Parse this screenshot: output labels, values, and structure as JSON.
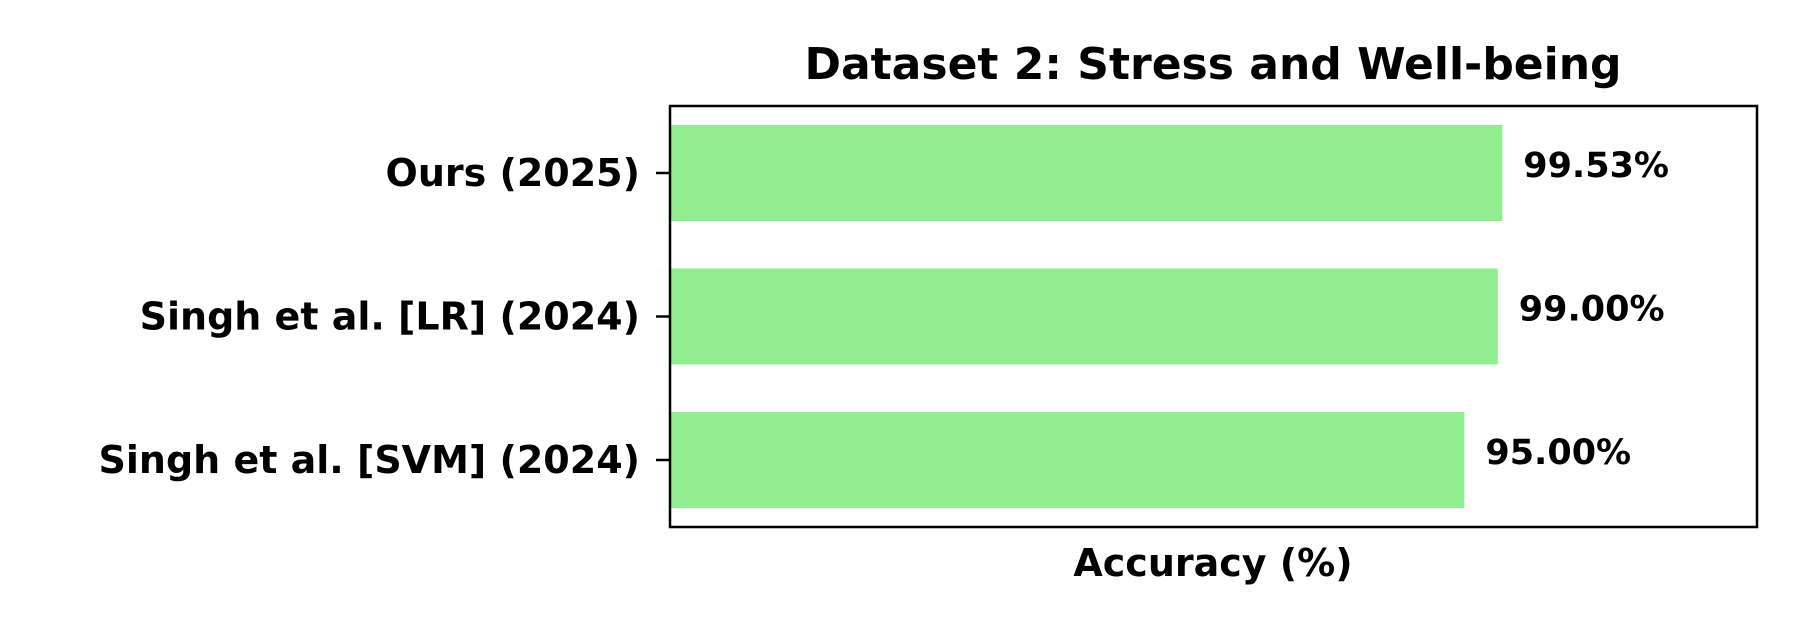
{
  "chart_data": {
    "type": "bar",
    "orientation": "horizontal",
    "title": "Dataset 2: Stress and Well-being",
    "xlabel": "Accuracy (%)",
    "ylabel": "",
    "categories": [
      "Ours (2025)",
      "Singh et al. [LR] (2024)",
      "Singh et al. [SVM] (2024)"
    ],
    "values": [
      99.53,
      99.0,
      95.0
    ],
    "value_labels": [
      "99.53%",
      "99.00%",
      "95.00%"
    ],
    "xlim": [
      0,
      130
    ],
    "x_ticks_shown": false,
    "grid": false,
    "legend": "none",
    "bar_color": "#90EE90"
  }
}
